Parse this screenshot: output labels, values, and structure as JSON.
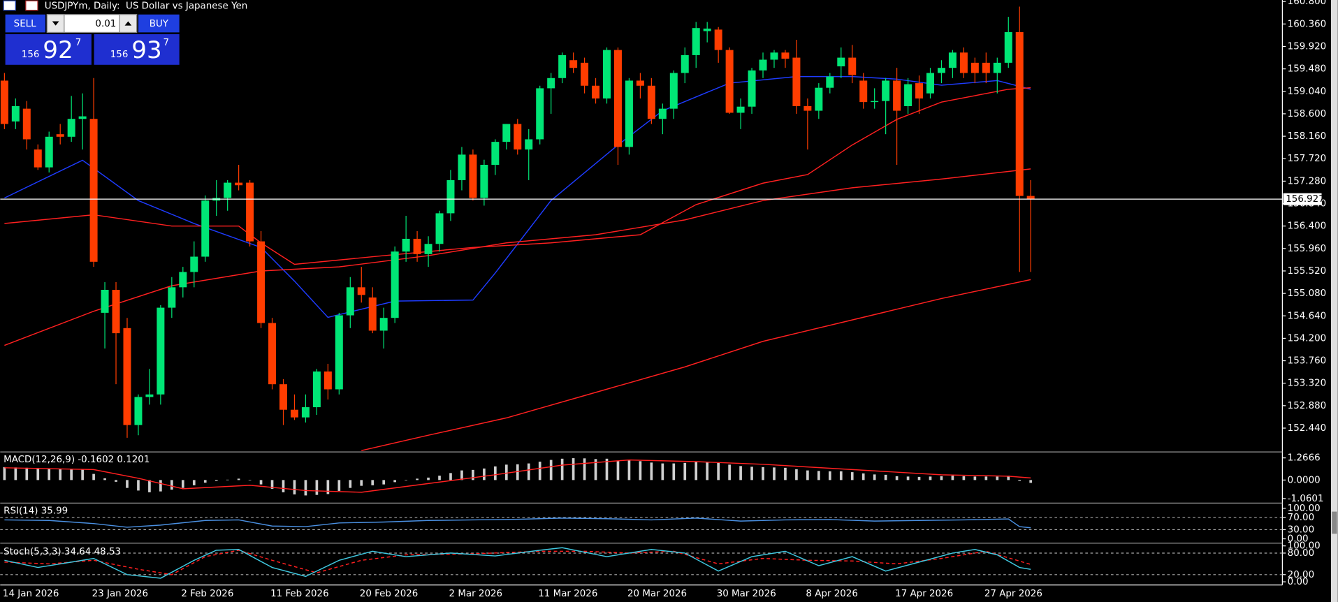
{
  "header": {
    "title": "USDJPYm, Daily:  US Dollar vs Japanese Yen"
  },
  "trade": {
    "sell": "SELL",
    "buy": "BUY",
    "volume": "0.01",
    "bid": {
      "big": "156",
      "main": "92",
      "small": "7"
    },
    "ask": {
      "big": "156",
      "main": "93",
      "small": "7"
    }
  },
  "chart_data": {
    "type": "candlestick",
    "up_color": "#00e676",
    "down_color": "#ff3d00",
    "ylim": [
      151.99,
      160.83
    ],
    "yticks": [
      {
        "value": 160.8,
        "label": "160.800"
      },
      {
        "value": 160.36,
        "label": "160.360"
      },
      {
        "value": 159.92,
        "label": "159.920"
      },
      {
        "value": 159.48,
        "label": "159.480"
      },
      {
        "value": 159.04,
        "label": "159.040"
      },
      {
        "value": 158.6,
        "label": "158.600"
      },
      {
        "value": 158.16,
        "label": "158.160"
      },
      {
        "value": 157.72,
        "label": "157.720"
      },
      {
        "value": 157.28,
        "label": "157.280"
      },
      {
        "value": 156.84,
        "label": "156.840"
      },
      {
        "value": 156.4,
        "label": "156.400"
      },
      {
        "value": 155.96,
        "label": "155.960"
      },
      {
        "value": 155.52,
        "label": "155.520"
      },
      {
        "value": 155.08,
        "label": "155.080"
      },
      {
        "value": 154.64,
        "label": "154.640"
      },
      {
        "value": 154.2,
        "label": "154.200"
      },
      {
        "value": 153.76,
        "label": "153.760"
      },
      {
        "value": 153.32,
        "label": "153.320"
      },
      {
        "value": 152.88,
        "label": "152.880"
      },
      {
        "value": 152.44,
        "label": "152.440"
      }
    ],
    "current_price": 156.927,
    "categories": [
      "14 Jan 2026",
      null,
      null,
      null,
      null,
      null,
      null,
      null,
      "23 Jan 2026",
      null,
      null,
      null,
      null,
      null,
      null,
      null,
      "2 Feb 2026",
      null,
      null,
      null,
      null,
      null,
      null,
      null,
      "11 Feb 2026",
      null,
      null,
      null,
      null,
      null,
      null,
      null,
      "20 Feb 2026",
      null,
      null,
      null,
      null,
      null,
      null,
      null,
      "2 Mar 2026",
      null,
      null,
      null,
      null,
      null,
      null,
      null,
      "11 Mar 2026",
      null,
      null,
      null,
      null,
      null,
      null,
      null,
      "20 Mar 2026",
      null,
      null,
      null,
      null,
      null,
      null,
      null,
      "30 Mar 2026",
      null,
      null,
      null,
      null,
      null,
      null,
      null,
      "8 Apr 2026",
      null,
      null,
      null,
      null,
      null,
      null,
      null,
      "17 Apr 2026",
      null,
      null,
      null,
      null,
      null,
      null,
      null,
      "27 Apr 2026",
      null,
      null,
      null,
      null
    ],
    "ohlc": [
      [
        159.25,
        159.4,
        158.3,
        158.4
      ],
      [
        158.45,
        158.9,
        158.3,
        158.75
      ],
      [
        158.7,
        158.85,
        157.9,
        158.1
      ],
      [
        157.9,
        158.0,
        157.5,
        157.55
      ],
      [
        157.55,
        158.25,
        157.45,
        158.15
      ],
      [
        158.2,
        158.4,
        158.0,
        158.15
      ],
      [
        158.15,
        158.95,
        158.05,
        158.5
      ],
      [
        158.5,
        159.0,
        157.9,
        158.55
      ],
      [
        158.5,
        159.3,
        155.6,
        155.7
      ],
      [
        154.7,
        155.3,
        154.0,
        155.15
      ],
      [
        155.15,
        155.3,
        153.3,
        154.3
      ],
      [
        154.4,
        154.6,
        152.25,
        152.5
      ],
      [
        152.5,
        153.1,
        152.3,
        153.05
      ],
      [
        153.05,
        153.6,
        152.9,
        153.1
      ],
      [
        153.1,
        154.85,
        152.9,
        154.8
      ],
      [
        154.8,
        155.4,
        154.6,
        155.2
      ],
      [
        155.2,
        155.6,
        155.0,
        155.5
      ],
      [
        155.5,
        156.1,
        155.2,
        155.8
      ],
      [
        155.8,
        157.0,
        155.7,
        156.9
      ],
      [
        156.9,
        157.3,
        156.6,
        156.95
      ],
      [
        156.95,
        157.3,
        156.7,
        157.25
      ],
      [
        157.25,
        157.6,
        157.1,
        157.2
      ],
      [
        157.25,
        157.3,
        156.0,
        156.1
      ],
      [
        156.1,
        156.3,
        154.4,
        154.5
      ],
      [
        154.5,
        154.6,
        153.2,
        153.3
      ],
      [
        153.3,
        153.4,
        152.5,
        152.8
      ],
      [
        152.8,
        153.1,
        152.6,
        152.65
      ],
      [
        152.65,
        153.1,
        152.55,
        152.85
      ],
      [
        152.85,
        153.6,
        152.7,
        153.55
      ],
      [
        153.55,
        153.7,
        153.0,
        153.2
      ],
      [
        153.2,
        154.7,
        153.1,
        154.65
      ],
      [
        154.65,
        155.4,
        154.4,
        155.2
      ],
      [
        155.2,
        155.6,
        154.9,
        155.05
      ],
      [
        155.0,
        155.2,
        154.3,
        154.35
      ],
      [
        154.35,
        154.8,
        154.0,
        154.6
      ],
      [
        154.6,
        156.0,
        154.5,
        155.9
      ],
      [
        155.9,
        156.6,
        155.7,
        156.15
      ],
      [
        156.15,
        156.3,
        155.7,
        155.85
      ],
      [
        155.85,
        156.2,
        155.6,
        156.05
      ],
      [
        156.05,
        156.7,
        155.9,
        156.65
      ],
      [
        156.65,
        157.5,
        156.5,
        157.3
      ],
      [
        157.3,
        157.95,
        157.1,
        157.8
      ],
      [
        157.8,
        157.9,
        156.9,
        156.95
      ],
      [
        156.95,
        157.7,
        156.8,
        157.6
      ],
      [
        157.6,
        158.1,
        157.4,
        158.05
      ],
      [
        158.05,
        158.4,
        157.9,
        158.4
      ],
      [
        158.4,
        158.5,
        157.8,
        157.9
      ],
      [
        157.9,
        158.3,
        157.3,
        158.1
      ],
      [
        158.1,
        159.15,
        158.0,
        159.1
      ],
      [
        159.1,
        159.4,
        158.6,
        159.3
      ],
      [
        159.3,
        159.8,
        159.2,
        159.75
      ],
      [
        159.65,
        159.8,
        159.4,
        159.5
      ],
      [
        159.6,
        159.7,
        159.0,
        159.15
      ],
      [
        159.15,
        159.3,
        158.8,
        158.9
      ],
      [
        158.9,
        159.9,
        158.8,
        159.85
      ],
      [
        159.85,
        159.9,
        157.6,
        157.95
      ],
      [
        157.95,
        159.3,
        157.8,
        159.25
      ],
      [
        159.25,
        159.4,
        158.9,
        159.15
      ],
      [
        159.15,
        159.3,
        158.4,
        158.5
      ],
      [
        158.5,
        158.8,
        158.2,
        158.7
      ],
      [
        158.7,
        159.45,
        158.5,
        159.4
      ],
      [
        159.4,
        159.9,
        159.2,
        159.75
      ],
      [
        159.75,
        160.4,
        159.5,
        160.28
      ],
      [
        160.22,
        160.4,
        160.0,
        160.27
      ],
      [
        160.25,
        160.3,
        159.6,
        159.85
      ],
      [
        159.85,
        159.9,
        158.6,
        158.62
      ],
      [
        158.62,
        158.9,
        158.3,
        158.74
      ],
      [
        158.74,
        159.5,
        158.6,
        159.45
      ],
      [
        159.45,
        159.8,
        159.3,
        159.66
      ],
      [
        159.66,
        159.85,
        159.5,
        159.8
      ],
      [
        159.8,
        159.85,
        159.5,
        159.68
      ],
      [
        159.7,
        160.05,
        158.6,
        158.75
      ],
      [
        158.75,
        158.9,
        157.9,
        158.66
      ],
      [
        158.66,
        159.2,
        158.5,
        159.11
      ],
      [
        159.11,
        159.4,
        159.0,
        159.33
      ],
      [
        159.53,
        159.9,
        159.3,
        159.7
      ],
      [
        159.7,
        159.95,
        159.2,
        159.36
      ],
      [
        159.25,
        159.4,
        158.7,
        158.83
      ],
      [
        158.83,
        159.1,
        158.7,
        158.85
      ],
      [
        158.85,
        159.3,
        158.2,
        159.25
      ],
      [
        159.25,
        159.5,
        157.6,
        158.66
      ],
      [
        158.75,
        159.3,
        158.6,
        159.18
      ],
      [
        159.2,
        159.35,
        158.6,
        158.9
      ],
      [
        159.0,
        159.5,
        158.9,
        159.4
      ],
      [
        159.4,
        159.65,
        159.2,
        159.5
      ],
      [
        159.5,
        159.85,
        159.3,
        159.8
      ],
      [
        159.8,
        159.9,
        159.3,
        159.4
      ],
      [
        159.6,
        159.7,
        159.2,
        159.4
      ],
      [
        159.6,
        159.8,
        159.2,
        159.4
      ],
      [
        159.4,
        159.7,
        159.0,
        159.6
      ],
      [
        159.6,
        160.5,
        159.5,
        160.2
      ],
      [
        160.2,
        160.7,
        155.5,
        156.99
      ],
      [
        156.99,
        157.3,
        155.5,
        156.93
      ]
    ],
    "series": [
      {
        "color": "#1e3cff",
        "x": [
          0,
          7,
          12,
          17,
          23,
          26,
          29,
          35,
          42,
          44,
          49,
          55,
          59,
          65,
          71,
          76,
          80,
          84,
          89,
          92
        ],
        "values": [
          156.95,
          157.69,
          156.9,
          156.45,
          155.98,
          155.32,
          154.61,
          154.93,
          154.95,
          155.48,
          156.9,
          157.99,
          158.66,
          159.2,
          159.33,
          159.33,
          159.28,
          159.16,
          159.25,
          159.08
        ]
      },
      {
        "color": "#ff2020",
        "x": [
          0,
          8,
          15,
          21,
          23,
          26,
          34,
          42,
          49,
          57,
          62,
          68,
          72,
          76,
          80,
          84,
          90,
          92
        ],
        "values": [
          156.45,
          156.62,
          156.4,
          156.4,
          156.07,
          155.65,
          155.82,
          155.98,
          156.07,
          156.23,
          156.82,
          157.24,
          157.41,
          157.99,
          158.49,
          158.83,
          159.08,
          159.11
        ]
      },
      {
        "color": "#ff2020",
        "x": [
          0,
          8,
          15,
          23,
          30,
          38,
          45,
          53,
          61,
          68,
          76,
          84,
          92
        ],
        "values": [
          154.06,
          154.73,
          155.23,
          155.52,
          155.6,
          155.82,
          156.07,
          156.23,
          156.52,
          156.9,
          157.15,
          157.32,
          157.52
        ]
      },
      {
        "color": "#ff2020",
        "x": [
          32,
          38,
          45,
          53,
          61,
          68,
          76,
          84,
          92
        ],
        "values": [
          152.0,
          152.3,
          152.64,
          153.14,
          153.64,
          154.14,
          154.56,
          154.98,
          155.35
        ]
      }
    ],
    "macd": {
      "label": "MACD(12,26,9) -0.1602 0.1201",
      "ylim": [
        -1.22,
        1.51
      ],
      "yticks": [
        1.2666,
        {
          "value": 0,
          "label": "0.0000"
        },
        -1.0601
      ],
      "histogram": {
        "color": "#d0d0d0",
        "values": [
          0.74,
          0.72,
          0.7,
          0.66,
          0.64,
          0.63,
          0.64,
          0.62,
          0.35,
          0.1,
          -0.1,
          -0.45,
          -0.6,
          -0.7,
          -0.65,
          -0.55,
          -0.45,
          -0.3,
          -0.15,
          -0.05,
          0.02,
          0.08,
          -0.02,
          -0.25,
          -0.5,
          -0.7,
          -0.82,
          -0.88,
          -0.85,
          -0.8,
          -0.62,
          -0.45,
          -0.33,
          -0.3,
          -0.25,
          -0.12,
          0.0,
          0.08,
          0.14,
          0.25,
          0.4,
          0.55,
          0.58,
          0.66,
          0.78,
          0.88,
          0.9,
          0.95,
          1.05,
          1.15,
          1.22,
          1.25,
          1.24,
          1.2,
          1.22,
          1.1,
          1.12,
          1.08,
          1.0,
          0.95,
          0.95,
          0.98,
          1.05,
          1.02,
          0.98,
          0.88,
          0.8,
          0.76,
          0.74,
          0.72,
          0.7,
          0.62,
          0.55,
          0.52,
          0.5,
          0.5,
          0.45,
          0.38,
          0.32,
          0.3,
          0.22,
          0.2,
          0.18,
          0.2,
          0.22,
          0.25,
          0.22,
          0.2,
          0.2,
          0.2,
          0.25,
          -0.05,
          -0.1602
        ]
      },
      "signal": {
        "color": "#ff2020",
        "x": [
          0,
          8,
          12,
          16,
          22,
          27,
          32,
          38,
          44,
          50,
          56,
          62,
          68,
          76,
          84,
          90,
          92
        ],
        "values": [
          0.7,
          0.6,
          0.1,
          -0.5,
          -0.3,
          -0.6,
          -0.7,
          -0.2,
          0.3,
          0.85,
          1.15,
          1.05,
          0.9,
          0.6,
          0.3,
          0.22,
          0.1201
        ]
      }
    },
    "rsi": {
      "label": "RSI(14) 35.99",
      "ylim": [
        -8.6,
        111.4
      ],
      "yticks": [
        {
          "value": 100,
          "label": "100.00"
        },
        {
          "value": 70,
          "label": "70.00",
          "level": true
        },
        {
          "value": 30,
          "label": "30.00",
          "level": true
        },
        {
          "value": 0,
          "label": "0.00"
        }
      ],
      "line": {
        "color": "#4a90e2",
        "x": [
          0,
          4,
          8,
          11,
          14,
          18,
          21,
          24,
          27,
          30,
          34,
          38,
          42,
          46,
          50,
          54,
          58,
          62,
          66,
          70,
          74,
          78,
          82,
          86,
          90,
          91,
          92
        ],
        "values": [
          62,
          60,
          50,
          38,
          45,
          60,
          62,
          42,
          40,
          52,
          55,
          60,
          62,
          64,
          68,
          66,
          62,
          68,
          58,
          62,
          63,
          58,
          60,
          62,
          65,
          40,
          35.99
        ]
      }
    },
    "stoch": {
      "label": "Stoch(5,3,3) 34.64 48.53",
      "ylim": [
        -4,
        100.5
      ],
      "yticks": [
        {
          "value": 100,
          "label": "100.00"
        },
        {
          "value": 80,
          "label": "80.00",
          "level": true
        },
        {
          "value": 20,
          "label": "20.00",
          "level": true
        },
        {
          "value": 0,
          "label": "0.00"
        }
      ],
      "main": {
        "color": "#40c8e0",
        "x": [
          0,
          3,
          6,
          8,
          11,
          14,
          17,
          19,
          21,
          24,
          27,
          30,
          33,
          36,
          40,
          44,
          48,
          50,
          54,
          58,
          61,
          64,
          67,
          70,
          73,
          76,
          79,
          82,
          85,
          87,
          89,
          91,
          92
        ],
        "values": [
          60,
          40,
          55,
          65,
          20,
          10,
          60,
          88,
          90,
          40,
          15,
          60,
          85,
          70,
          80,
          72,
          88,
          95,
          70,
          90,
          80,
          30,
          70,
          85,
          45,
          70,
          30,
          55,
          80,
          90,
          75,
          40,
          34.64
        ]
      },
      "signal": {
        "color": "#ff2020",
        "x": [
          0,
          4,
          8,
          12,
          15,
          18,
          21,
          24,
          28,
          32,
          36,
          42,
          48,
          52,
          56,
          60,
          64,
          68,
          72,
          76,
          80,
          84,
          88,
          92
        ],
        "values": [
          55,
          50,
          60,
          35,
          20,
          70,
          88,
          60,
          25,
          60,
          75,
          78,
          85,
          85,
          80,
          85,
          50,
          65,
          60,
          58,
          50,
          65,
          85,
          48.53
        ]
      }
    }
  }
}
